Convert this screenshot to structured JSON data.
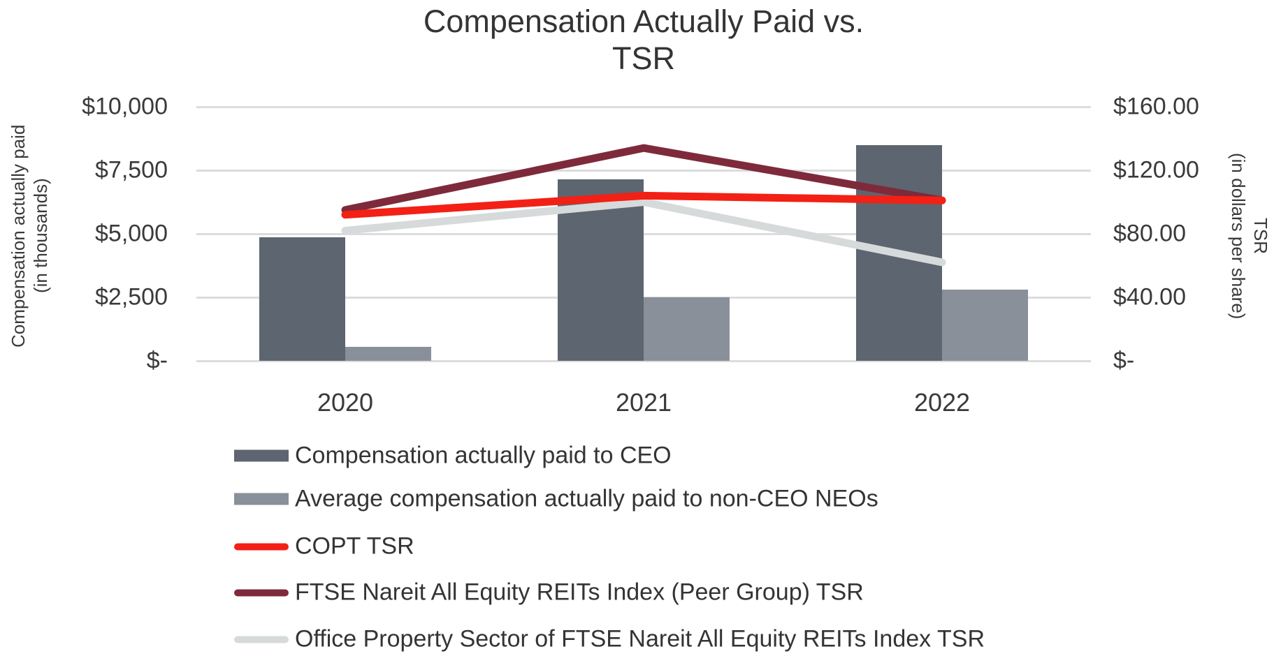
{
  "chart_data": {
    "type": "combo-bar-line",
    "title_line1": "Compensation Actually Paid vs.",
    "title_line2": "TSR",
    "categories": [
      "2020",
      "2021",
      "2022"
    ],
    "bar_series": [
      {
        "name": "Compensation actually paid to CEO",
        "axis": "left",
        "color": "#5d6570",
        "values": [
          4850,
          7150,
          8500
        ]
      },
      {
        "name": "Average compensation actually paid to non-CEO NEOs",
        "axis": "left",
        "color": "#8a9099",
        "values": [
          540,
          2500,
          2800
        ]
      }
    ],
    "line_series": [
      {
        "name": "COPT TSR",
        "axis": "right",
        "color": "#f32015",
        "values": [
          92,
          104,
          101
        ]
      },
      {
        "name": "FTSE Nareit All Equity REITs Index (Peer Group) TSR",
        "axis": "right",
        "color": "#7e2a3b",
        "values": [
          95,
          134,
          101
        ]
      },
      {
        "name": "Office Property Sector of FTSE Nareit All Equity REITs Index TSR",
        "axis": "right",
        "color": "#d7dadb",
        "values": [
          82,
          100,
          62
        ]
      }
    ],
    "left_axis": {
      "title_line1": "Compensation actually paid",
      "title_line2": "(in thousands)",
      "ticks": [
        "$10,000",
        "$7,500",
        "$5,000",
        "$2,500",
        "$-"
      ],
      "range": [
        0,
        10000
      ]
    },
    "right_axis": {
      "title_line1": "TSR",
      "title_line2": "(in dollars per share)",
      "ticks": [
        "$160.00",
        "$120.00",
        "$80.00",
        "$40.00",
        "$-"
      ],
      "range": [
        0,
        160
      ]
    },
    "grid": true,
    "gridline_color": "#dcdcdc",
    "text_color": "#3a3a3a",
    "legend_position": "bottom-left"
  }
}
